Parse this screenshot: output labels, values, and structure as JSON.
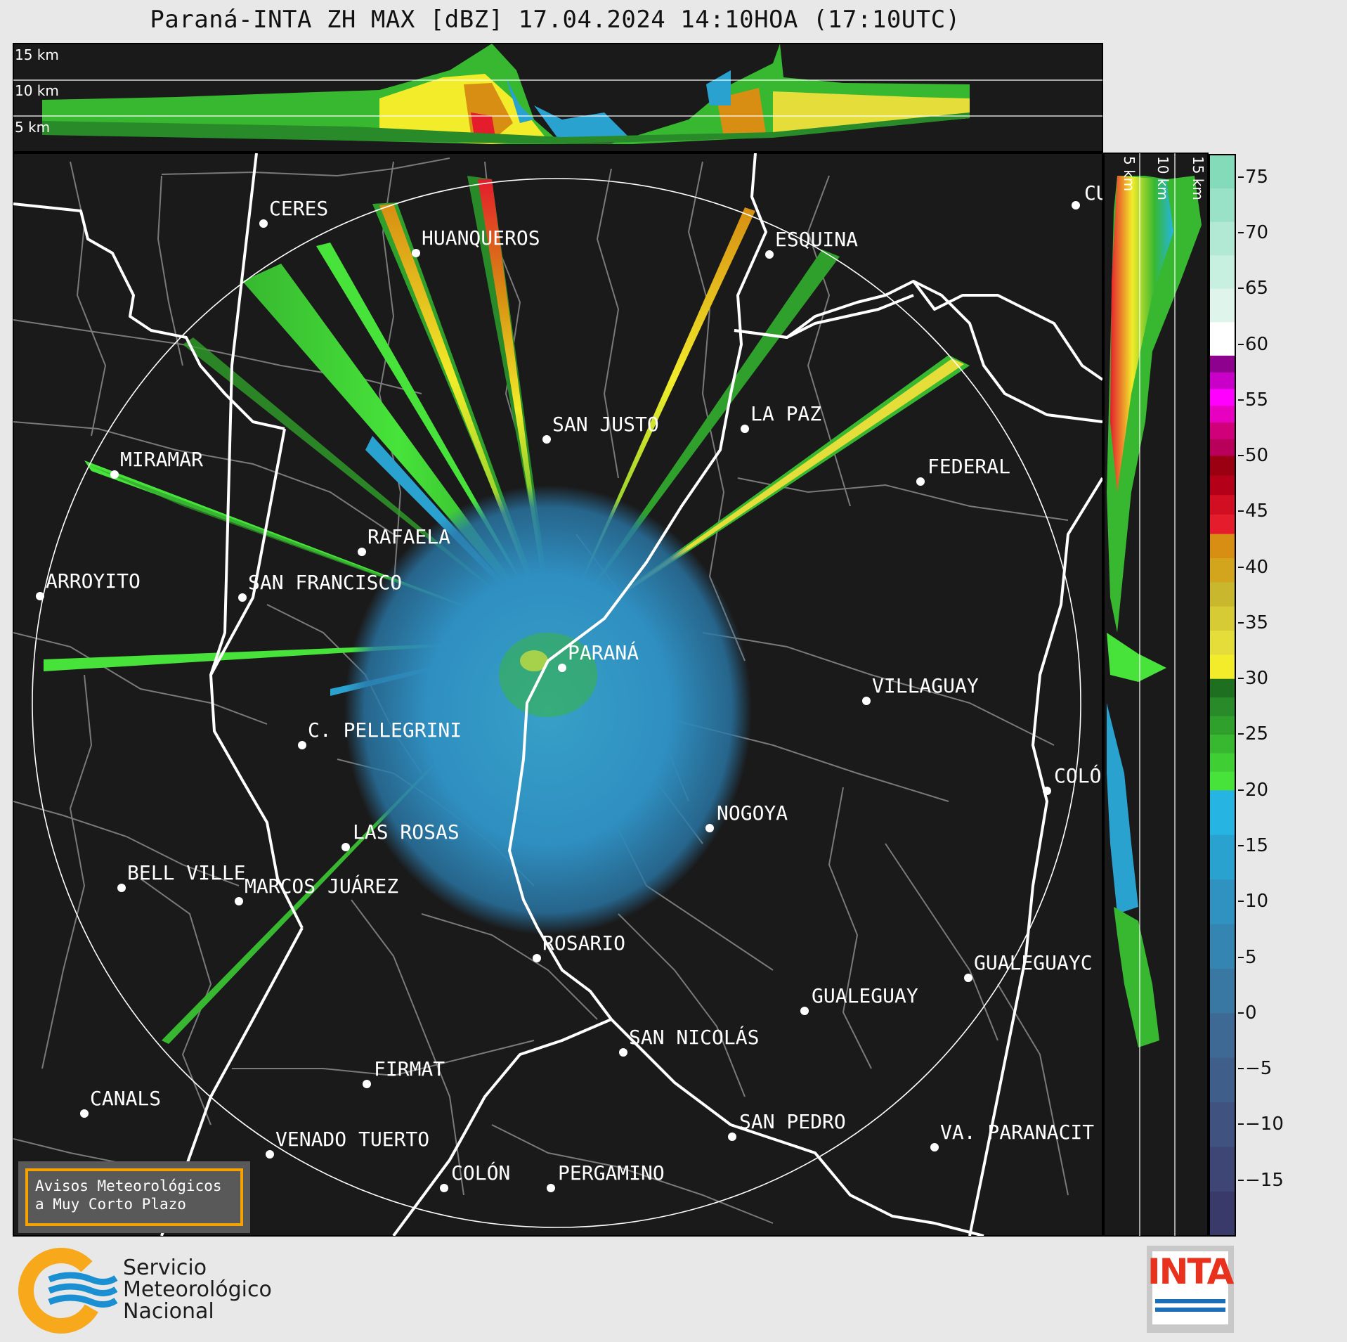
{
  "title": "Paraná-INTA ZH MAX [dBZ] 17.04.2024 14:10HOA (17:10UTC)",
  "top_panel": {
    "km_labels": [
      "15 km",
      "10 km",
      "5 km"
    ]
  },
  "side_panel": {
    "km_labels": [
      "5 km",
      "10 km",
      "15 km"
    ]
  },
  "colorbar": {
    "ticks": [
      "75",
      "70",
      "65",
      "60",
      "55",
      "50",
      "45",
      "40",
      "35",
      "30",
      "25",
      "20",
      "15",
      "10",
      "5",
      "0",
      "−5",
      "−10",
      "−15"
    ],
    "bands": [
      "#3a3a6a",
      "#3d4675",
      "#3f5280",
      "#3f5e8a",
      "#3e6995",
      "#3a78a4",
      "#3585b3",
      "#2f92c0",
      "#2aa2d0",
      "#26b4e2",
      "#47e33a",
      "#3fcf35",
      "#37b830",
      "#2fa02b",
      "#288a28",
      "#1f6f21",
      "#f2ec2a",
      "#e5dd3a",
      "#d6cb34",
      "#c9b72d",
      "#d3a51d",
      "#d78e12",
      "#e41c2c",
      "#d10e22",
      "#b5001a",
      "#9a0012",
      "#b8005a",
      "#d0007a",
      "#e800c0",
      "#ff00ff",
      "#c800c8",
      "#8e008e",
      "#ffffff",
      "#dff5ec",
      "#c8f0e1",
      "#b1e9d4",
      "#9ae2c7",
      "#83dbba"
    ]
  },
  "map": {
    "radar_site": "PARANÁ",
    "cities": [
      "CERES",
      "HUANQUEROS",
      "ESQUINA",
      "CU",
      "SAN JUSTO",
      "LA PAZ",
      "MIRAMAR",
      "FEDERAL",
      "RAFAELA",
      "ARROYITO",
      "SAN FRANCISCO",
      "PARANÁ",
      "VILLAGUAY",
      "C. PELLEGRINI",
      "COLÓ",
      "NOGOYA",
      "LAS ROSAS",
      "BELL VILLE",
      "MARCOS JUÁREZ",
      "ROSARIO",
      "GUALEGUAYC",
      "GUALEGUAY",
      "SAN NICOLÁS",
      "FIRMAT",
      "CANALS",
      "SAN PEDRO",
      "VENADO TUERTO",
      "VA. PARANACIT",
      "COLÓN",
      "PERGAMINO"
    ]
  },
  "notice": {
    "line1": "Avisos Meteorológicos",
    "line2": "a Muy Corto Plazo"
  },
  "logos": {
    "smn": {
      "line1": "Servicio",
      "line2": "Meteorológico",
      "line3": "Nacional"
    },
    "inta": "INTA"
  },
  "colors": {
    "background": "#1a1a1a",
    "page": "#e8e8e8",
    "border_white": "#ffffff",
    "smn_orange": "#f7a81b",
    "smn_blue": "#1a8fd1",
    "inta_red": "#e8321e"
  }
}
